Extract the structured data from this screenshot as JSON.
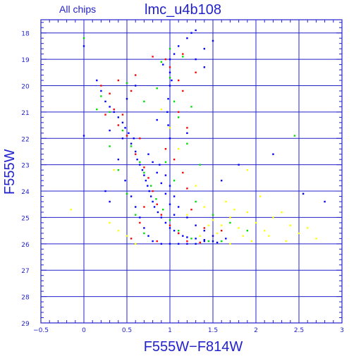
{
  "chart_data": {
    "type": "scatter",
    "title": "lmc_u4b108",
    "subtitle": "All chips",
    "xlabel": "F555W−F814W",
    "ylabel": "F555W",
    "xlim": [
      -0.5,
      3
    ],
    "ylim": [
      29,
      17.5
    ],
    "y_inverted": true,
    "x_ticks": [
      -0.5,
      0,
      0.5,
      1,
      1.5,
      2,
      2.5,
      3
    ],
    "x_tick_labels": [
      "−0.5",
      "0",
      "0.5",
      "1",
      "1.5",
      "2",
      "2.5",
      "3"
    ],
    "y_ticks": [
      18,
      19,
      20,
      21,
      22,
      23,
      24,
      25,
      26,
      27,
      28,
      29
    ],
    "y_tick_labels": [
      "18",
      "19",
      "20",
      "21",
      "22",
      "23",
      "24",
      "25",
      "26",
      "27",
      "28",
      "29"
    ],
    "grid": true,
    "series": [
      {
        "color": "#0000ff",
        "description": "main sequence / red giant branch stars (blue points)",
        "points": [
          [
            0.55,
            22.2
          ],
          [
            0.6,
            22.5
          ],
          [
            0.62,
            22.8
          ],
          [
            0.65,
            23.0
          ],
          [
            0.68,
            23.2
          ],
          [
            0.7,
            23.4
          ],
          [
            0.72,
            23.6
          ],
          [
            0.74,
            23.8
          ],
          [
            0.76,
            24.0
          ],
          [
            0.78,
            24.2
          ],
          [
            0.8,
            24.4
          ],
          [
            0.82,
            24.6
          ],
          [
            0.86,
            24.8
          ],
          [
            0.9,
            25.0
          ],
          [
            0.95,
            25.2
          ],
          [
            1.0,
            25.4
          ],
          [
            1.05,
            25.5
          ],
          [
            1.1,
            25.6
          ],
          [
            1.15,
            25.7
          ],
          [
            1.2,
            25.75
          ],
          [
            1.3,
            25.8
          ],
          [
            1.4,
            25.85
          ],
          [
            1.5,
            25.9
          ],
          [
            1.55,
            25.95
          ],
          [
            0.58,
            22.0
          ],
          [
            0.52,
            21.8
          ],
          [
            0.48,
            21.6
          ],
          [
            0.45,
            21.4
          ],
          [
            0.4,
            21.2
          ],
          [
            0.35,
            21.0
          ],
          [
            0.3,
            20.8
          ],
          [
            0.25,
            20.6
          ],
          [
            0.2,
            20.2
          ],
          [
            0.15,
            19.8
          ],
          [
            1.0,
            19.0
          ],
          [
            1.0,
            19.5
          ],
          [
            1.0,
            20.0
          ],
          [
            0.98,
            20.5
          ],
          [
            0.97,
            21.0
          ],
          [
            0.98,
            21.5
          ],
          [
            1.0,
            22.0
          ],
          [
            1.05,
            18.8
          ],
          [
            1.1,
            18.5
          ],
          [
            1.2,
            18.2
          ],
          [
            1.3,
            17.9
          ],
          [
            1.25,
            18.0
          ],
          [
            0.92,
            19.2
          ],
          [
            1.02,
            19.8
          ],
          [
            0.0,
            18.5
          ],
          [
            0.0,
            21.9
          ],
          [
            0.3,
            21.7
          ],
          [
            0.45,
            22.0
          ],
          [
            0.4,
            22.8
          ],
          [
            0.48,
            23.6
          ],
          [
            0.55,
            24.2
          ],
          [
            0.6,
            24.6
          ],
          [
            0.65,
            25.0
          ],
          [
            0.7,
            25.4
          ],
          [
            0.75,
            25.7
          ],
          [
            0.8,
            25.9
          ],
          [
            0.9,
            26.0
          ],
          [
            1.0,
            26.0
          ],
          [
            1.1,
            26.0
          ],
          [
            1.2,
            26.0
          ],
          [
            1.3,
            26.0
          ],
          [
            1.4,
            25.9
          ],
          [
            0.88,
            23.0
          ],
          [
            0.95,
            23.4
          ],
          [
            1.0,
            23.8
          ],
          [
            1.05,
            24.2
          ],
          [
            1.1,
            24.6
          ],
          [
            1.2,
            25.0
          ],
          [
            1.3,
            25.3
          ],
          [
            1.4,
            25.5
          ],
          [
            1.5,
            25.7
          ],
          [
            1.65,
            25.8
          ],
          [
            0.75,
            22.6
          ],
          [
            0.8,
            22.9
          ],
          [
            0.85,
            23.3
          ],
          [
            0.9,
            23.7
          ],
          [
            0.95,
            24.1
          ],
          [
            1.0,
            24.5
          ],
          [
            1.05,
            24.9
          ],
          [
            1.6,
            23.6
          ],
          [
            1.8,
            23.0
          ],
          [
            2.2,
            22.6
          ],
          [
            2.55,
            24.1
          ],
          [
            2.8,
            24.4
          ],
          [
            0.3,
            24.4
          ],
          [
            0.25,
            24.0
          ],
          [
            1.2,
            21.8
          ],
          [
            1.3,
            19.0
          ],
          [
            1.4,
            18.6
          ],
          [
            1.5,
            18.3
          ],
          [
            1.4,
            19.3
          ],
          [
            0.6,
            20.0
          ],
          [
            0.5,
            20.5
          ],
          [
            0.85,
            21.3
          ]
        ]
      },
      {
        "color": "#ff0000",
        "description": "red points",
        "points": [
          [
            0.2,
            20.0
          ],
          [
            0.3,
            20.3
          ],
          [
            0.35,
            20.9
          ],
          [
            0.4,
            21.5
          ],
          [
            0.5,
            21.9
          ],
          [
            0.6,
            22.6
          ],
          [
            0.7,
            23.1
          ],
          [
            0.75,
            23.5
          ],
          [
            0.8,
            24.0
          ],
          [
            0.85,
            24.5
          ],
          [
            0.9,
            24.9
          ],
          [
            1.0,
            25.3
          ],
          [
            1.1,
            25.6
          ],
          [
            1.2,
            25.9
          ],
          [
            1.35,
            25.95
          ],
          [
            0.95,
            19.0
          ],
          [
            1.0,
            19.3
          ],
          [
            1.1,
            19.8
          ],
          [
            1.15,
            20.2
          ],
          [
            0.8,
            18.9
          ],
          [
            0.6,
            19.6
          ],
          [
            0.55,
            20.2
          ],
          [
            0.45,
            21.1
          ],
          [
            0.65,
            22.0
          ],
          [
            0.95,
            22.4
          ],
          [
            1.05,
            22.8
          ],
          [
            1.15,
            23.3
          ],
          [
            1.2,
            23.9
          ],
          [
            1.25,
            24.7
          ],
          [
            1.4,
            25.4
          ],
          [
            1.6,
            25.5
          ],
          [
            0.7,
            24.6
          ],
          [
            0.65,
            25.2
          ],
          [
            0.55,
            25.8
          ],
          [
            0.85,
            25.9
          ],
          [
            1.1,
            21.0
          ],
          [
            1.2,
            21.6
          ],
          [
            0.25,
            21.1
          ],
          [
            1.3,
            19.5
          ],
          [
            1.15,
            18.8
          ],
          [
            0.4,
            19.8
          ]
        ]
      },
      {
        "color": "#00dd00",
        "description": "green points",
        "points": [
          [
            0.0,
            18.2
          ],
          [
            0.2,
            20.4
          ],
          [
            0.3,
            21.0
          ],
          [
            0.45,
            21.7
          ],
          [
            0.55,
            22.3
          ],
          [
            0.65,
            22.9
          ],
          [
            0.7,
            23.3
          ],
          [
            0.78,
            23.8
          ],
          [
            0.84,
            24.3
          ],
          [
            0.92,
            24.7
          ],
          [
            1.0,
            25.1
          ],
          [
            1.1,
            25.5
          ],
          [
            1.25,
            25.8
          ],
          [
            1.45,
            25.9
          ],
          [
            1.6,
            25.9
          ],
          [
            0.9,
            19.1
          ],
          [
            1.0,
            19.7
          ],
          [
            1.05,
            20.6
          ],
          [
            1.1,
            21.2
          ],
          [
            1.15,
            18.9
          ],
          [
            0.85,
            20.1
          ],
          [
            0.5,
            19.9
          ],
          [
            0.3,
            22.3
          ],
          [
            0.4,
            23.2
          ],
          [
            0.5,
            24.1
          ],
          [
            0.6,
            24.9
          ],
          [
            0.7,
            25.6
          ],
          [
            1.3,
            24.4
          ],
          [
            1.5,
            24.9
          ],
          [
            1.7,
            25.2
          ],
          [
            2.45,
            21.9
          ],
          [
            1.2,
            22.2
          ],
          [
            1.35,
            23.0
          ],
          [
            1.9,
            25.5
          ],
          [
            1.0,
            18.6
          ],
          [
            0.7,
            20.6
          ],
          [
            1.25,
            20.8
          ],
          [
            0.15,
            20.9
          ],
          [
            0.95,
            22.9
          ],
          [
            1.05,
            23.6
          ]
        ]
      },
      {
        "color": "#ffff00",
        "description": "yellow points (faint, red-extended)",
        "points": [
          [
            -0.15,
            24.7
          ],
          [
            0.35,
            23.2
          ],
          [
            0.3,
            25.2
          ],
          [
            0.4,
            25.5
          ],
          [
            1.2,
            24.9
          ],
          [
            1.4,
            24.6
          ],
          [
            1.5,
            25.1
          ],
          [
            1.6,
            25.3
          ],
          [
            1.7,
            25.0
          ],
          [
            1.8,
            25.4
          ],
          [
            1.9,
            24.8
          ],
          [
            2.0,
            25.2
          ],
          [
            2.1,
            25.5
          ],
          [
            2.2,
            25.0
          ],
          [
            2.3,
            24.8
          ],
          [
            2.4,
            25.3
          ],
          [
            2.5,
            25.6
          ],
          [
            2.6,
            25.4
          ],
          [
            2.7,
            25.8
          ],
          [
            1.65,
            24.4
          ],
          [
            1.75,
            24.7
          ],
          [
            1.85,
            25.7
          ],
          [
            1.95,
            25.9
          ],
          [
            1.55,
            25.6
          ],
          [
            1.45,
            25.3
          ],
          [
            1.3,
            23.8
          ],
          [
            1.1,
            22.4
          ],
          [
            1.0,
            21.6
          ],
          [
            0.9,
            20.9
          ],
          [
            2.35,
            25.9
          ],
          [
            1.7,
            26.0
          ],
          [
            2.15,
            25.7
          ],
          [
            0.5,
            25.7
          ],
          [
            0.6,
            26.0
          ],
          [
            1.9,
            23.2
          ],
          [
            2.05,
            24.2
          ],
          [
            1.35,
            25.7
          ]
        ]
      }
    ]
  }
}
